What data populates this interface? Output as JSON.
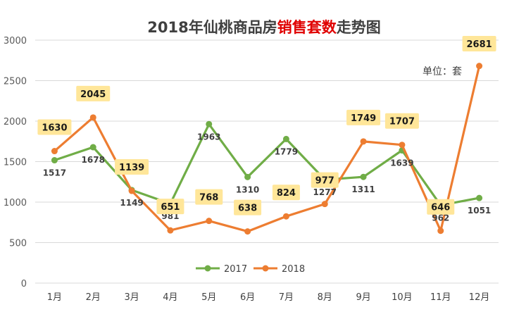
{
  "chart_data": {
    "type": "line",
    "title_parts": [
      {
        "text": "2018年仙桃商品房",
        "color": "#404040"
      },
      {
        "text": "销售套数",
        "color": "#e00000"
      },
      {
        "text": "走势图",
        "color": "#404040"
      }
    ],
    "unit_label": "单位：套",
    "categories": [
      "1月",
      "2月",
      "3月",
      "4月",
      "5月",
      "6月",
      "7月",
      "8月",
      "9月",
      "10月",
      "11月",
      "12月"
    ],
    "yticks": [
      "0",
      "500",
      "1000",
      "1500",
      "2000",
      "2500",
      "3000"
    ],
    "ylim": [
      0,
      3000
    ],
    "grid": true,
    "legend_position": "bottom",
    "series": [
      {
        "name": "2017",
        "color": "#70ad47",
        "values": [
          1517,
          1678,
          1149,
          981,
          1963,
          1310,
          1779,
          1277,
          1311,
          1639,
          962,
          1051
        ],
        "labels": [
          "1517",
          "1678",
          "1149",
          "981",
          "1963",
          "1310",
          "1779",
          "1277",
          "1311",
          "1639",
          "962",
          "1051"
        ]
      },
      {
        "name": "2018",
        "color": "#ed7d31",
        "label_bg": "#ffe699",
        "values": [
          1630,
          2045,
          1139,
          651,
          768,
          638,
          824,
          977,
          1749,
          1707,
          646,
          2681
        ],
        "labels": [
          "1630",
          "2045",
          "1139",
          "651",
          "768",
          "638",
          "824",
          "977",
          "1749",
          "1707",
          "646",
          "2681"
        ]
      }
    ]
  }
}
